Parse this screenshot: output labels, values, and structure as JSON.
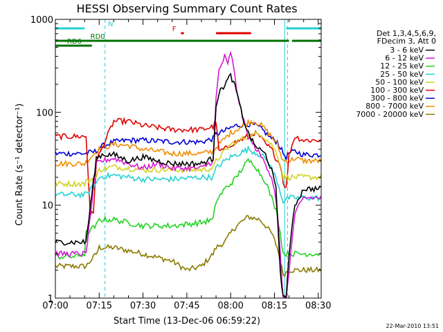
{
  "chart_data": {
    "type": "line",
    "title": "HESSI Observing Summary Count Rates",
    "xlabel": "Start Time (13-Dec-06 06:59:22)",
    "ylabel": "Count Rate (s⁻¹ detector⁻¹)",
    "yscale": "log",
    "ylim": [
      1,
      1000
    ],
    "xlim_min": [
      0,
      91
    ],
    "x_ticks": [
      {
        "min": 0,
        "label": "07:00"
      },
      {
        "min": 15,
        "label": "07:15"
      },
      {
        "min": 30,
        "label": "07:30"
      },
      {
        "min": 45,
        "label": "07:45"
      },
      {
        "min": 60,
        "label": "08:00"
      },
      {
        "min": 75,
        "label": "08:15"
      },
      {
        "min": 90,
        "label": "08:30"
      }
    ],
    "y_ticks": [
      {
        "value": 1,
        "label": "1"
      },
      {
        "value": 10,
        "label": "10"
      },
      {
        "value": 100,
        "label": "100"
      },
      {
        "value": 1000,
        "label": "1000"
      }
    ],
    "grid": false,
    "legend": {
      "position": "right",
      "header": [
        "Det 1,3,4,5,6,9,",
        "FDecim 3, Att 0"
      ]
    },
    "series": [
      {
        "name": "3 - 6 keV",
        "color": "#000000",
        "x": [
          0,
          10,
          10.5,
          14,
          16,
          20,
          25,
          30,
          35,
          40,
          45,
          50,
          54,
          55,
          56,
          58,
          60,
          62,
          64,
          66,
          68,
          72,
          74,
          75.5,
          76,
          77,
          78,
          79,
          80,
          82,
          85,
          89,
          91
        ],
        "y": [
          4,
          4,
          4,
          32,
          35,
          35,
          30,
          33,
          30,
          28,
          28,
          28,
          32,
          120,
          160,
          200,
          250,
          170,
          90,
          60,
          45,
          35,
          24,
          15,
          8,
          2,
          1,
          1,
          3,
          10,
          15,
          15,
          15
        ]
      },
      {
        "name": "6 - 12 keV",
        "color": "#d21ad2",
        "x": [
          0,
          10,
          10.5,
          14,
          16,
          20,
          25,
          30,
          35,
          40,
          45,
          50,
          54,
          55,
          56,
          58,
          59,
          60,
          61,
          62,
          64,
          66,
          70,
          72,
          74,
          75,
          76,
          77,
          78,
          79,
          82,
          85,
          91
        ],
        "y": [
          3,
          3,
          3,
          28,
          30,
          32,
          28,
          25,
          28,
          25,
          25,
          25,
          30,
          140,
          280,
          400,
          320,
          450,
          300,
          180,
          90,
          55,
          35,
          28,
          20,
          15,
          8,
          3,
          1,
          1,
          8,
          12,
          12
        ]
      },
      {
        "name": "12 - 25 keV",
        "color": "#22d222",
        "x": [
          0,
          7,
          10,
          10.5,
          14,
          15,
          20,
          30,
          40,
          50,
          54,
          55,
          58,
          60,
          62,
          64,
          66,
          68,
          70,
          72,
          74,
          76,
          77,
          78,
          80,
          85,
          91
        ],
        "y": [
          2.8,
          2.8,
          3,
          5,
          6,
          7,
          7,
          6,
          6,
          6.5,
          7,
          11,
          15,
          17,
          20,
          25,
          30,
          28,
          22,
          18,
          12,
          8,
          5,
          3,
          3,
          3,
          3
        ]
      },
      {
        "name": "25 - 50 keV",
        "color": "#22d2d2",
        "x": [
          0,
          10,
          10.5,
          14,
          15,
          20,
          30,
          40,
          50,
          54,
          55,
          58,
          60,
          62,
          66,
          70,
          72,
          74,
          76,
          77,
          78,
          80,
          85,
          91
        ],
        "y": [
          13,
          13,
          13,
          17,
          20,
          21,
          19,
          19,
          20,
          20,
          25,
          30,
          33,
          35,
          40,
          35,
          32,
          25,
          18,
          14,
          11,
          12,
          12,
          12
        ]
      },
      {
        "name": "50 - 100 keV",
        "color": "#d2d222",
        "x": [
          0,
          10,
          10.5,
          14,
          15,
          20,
          30,
          40,
          50,
          54,
          55,
          58,
          60,
          62,
          66,
          70,
          72,
          74,
          76,
          77,
          78,
          80,
          85,
          91
        ],
        "y": [
          17,
          17,
          18,
          20,
          24,
          26,
          24,
          24,
          24,
          25,
          30,
          38,
          45,
          48,
          55,
          60,
          52,
          45,
          35,
          28,
          20,
          20,
          20,
          20
        ]
      },
      {
        "name": "100 - 300 keV",
        "color": "#e00000",
        "x": [
          0,
          10,
          10.5,
          12,
          13,
          14,
          15,
          20,
          25,
          30,
          40,
          50,
          54,
          55,
          56,
          58,
          60,
          62,
          66,
          68,
          70,
          72,
          74,
          76,
          77,
          78,
          79,
          80,
          82,
          85,
          91
        ],
        "y": [
          55,
          55,
          55,
          8,
          8,
          30,
          35,
          80,
          80,
          72,
          65,
          65,
          70,
          80,
          38,
          40,
          45,
          48,
          55,
          60,
          55,
          45,
          40,
          30,
          28,
          18,
          15,
          35,
          55,
          50,
          50
        ]
      },
      {
        "name": "300 - 800 keV",
        "color": "#0000d2",
        "x": [
          0,
          10,
          10.5,
          14,
          15,
          20,
          25,
          30,
          40,
          50,
          54,
          55,
          58,
          60,
          62,
          66,
          68,
          70,
          72,
          74,
          76,
          77,
          78,
          79,
          80,
          82,
          85,
          91
        ],
        "y": [
          36,
          36,
          36,
          38,
          42,
          48,
          50,
          50,
          48,
          48,
          52,
          58,
          63,
          68,
          72,
          75,
          73,
          68,
          60,
          52,
          48,
          42,
          36,
          33,
          36,
          38,
          35,
          35
        ]
      },
      {
        "name": "800 - 7000 keV",
        "color": "#f08c00",
        "x": [
          0,
          10,
          10.5,
          14,
          15,
          20,
          25,
          30,
          40,
          50,
          54,
          55,
          58,
          60,
          62,
          66,
          68,
          70,
          72,
          74,
          76,
          77,
          78,
          80,
          82,
          85,
          91
        ],
        "y": [
          28,
          28,
          29,
          38,
          40,
          45,
          44,
          40,
          36,
          36,
          38,
          42,
          52,
          60,
          65,
          78,
          80,
          75,
          65,
          55,
          45,
          36,
          30,
          30,
          32,
          30,
          30
        ]
      },
      {
        "name": "7000 - 20000 keV",
        "color": "#8b7a00",
        "x": [
          0,
          10,
          10.5,
          14,
          15,
          20,
          30,
          40,
          45,
          50,
          54,
          55,
          58,
          60,
          62,
          66,
          70,
          72,
          74,
          76,
          77,
          78,
          80,
          85,
          91
        ],
        "y": [
          2.2,
          2.2,
          2.2,
          3,
          3.5,
          3.5,
          3,
          2.5,
          2,
          2.2,
          3,
          3.5,
          4,
          5,
          6,
          7.5,
          7,
          6,
          5,
          3.5,
          2.5,
          1.8,
          2,
          2,
          2
        ]
      }
    ],
    "annotations": [
      {
        "label": "N",
        "color": "#22d2d2",
        "segments": [
          [
            0,
            10
          ],
          [
            79,
            91
          ]
        ],
        "label_min": 18
      },
      {
        "label": "F",
        "color": "#e00000",
        "segments": [
          [
            43,
            44
          ],
          [
            55,
            67
          ]
        ],
        "label_min": 40
      },
      {
        "label": "RD0",
        "color": "#007000",
        "segments": [
          [
            0,
            20
          ],
          [
            20,
            61
          ],
          [
            61,
            80
          ],
          [
            81,
            91
          ]
        ],
        "label_min": 12
      },
      {
        "label": "RD6",
        "color": "#007000",
        "segments": [
          [
            0,
            12.5
          ]
        ],
        "label_min": 4
      }
    ],
    "vertical_markers": [
      {
        "min": 17,
        "color": "#22d2d2",
        "style": "dashed"
      },
      {
        "min": 78.5,
        "color": "#22d2d2",
        "style": "solid"
      },
      {
        "min": 79.5,
        "color": "#22d2d2",
        "style": "dashed"
      },
      {
        "min": 91,
        "color": "#22d2d2",
        "style": "dashed"
      }
    ],
    "timestamp": "22-Mar-2010 13:51"
  }
}
